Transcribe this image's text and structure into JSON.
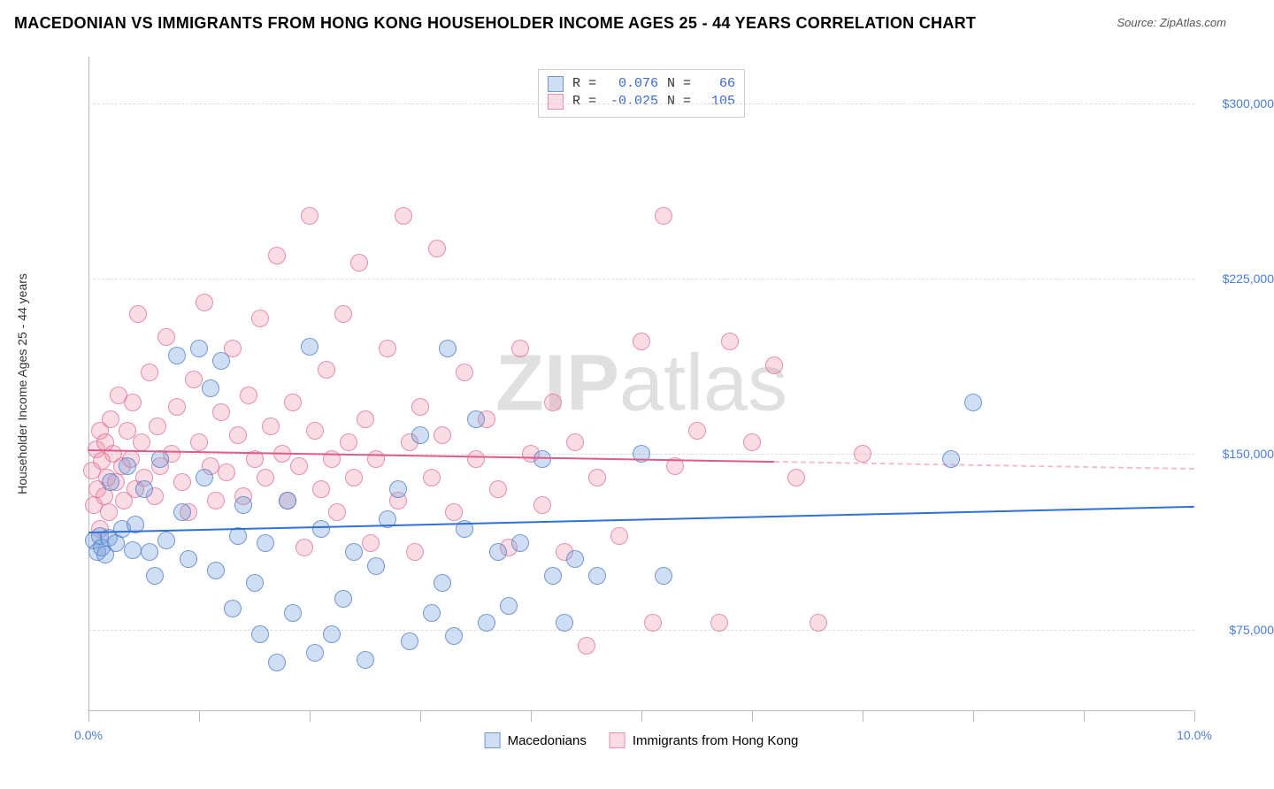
{
  "title": "MACEDONIAN VS IMMIGRANTS FROM HONG KONG HOUSEHOLDER INCOME AGES 25 - 44 YEARS CORRELATION CHART",
  "source_prefix": "Source: ",
  "source_name": "ZipAtlas.com",
  "ylabel": "Householder Income Ages 25 - 44 years",
  "watermark_a": "ZIP",
  "watermark_b": "atlas",
  "chart": {
    "type": "scatter",
    "xlim": [
      0,
      10
    ],
    "ylim": [
      40000,
      320000
    ],
    "x_tick_positions": [
      0,
      1,
      2,
      3,
      4,
      5,
      6,
      7,
      8,
      9,
      10
    ],
    "x_visible_labels": {
      "0": "0.0%",
      "10": "10.0%"
    },
    "y_ticks": [
      75000,
      150000,
      225000,
      300000
    ],
    "y_tick_labels": [
      "$75,000",
      "$150,000",
      "$225,000",
      "$300,000"
    ],
    "grid_color": "#dddddd",
    "axis_color": "#bbbbbb",
    "background": "#ffffff",
    "tick_label_color": "#4a7dd6",
    "point_radius": 10,
    "series": {
      "a": {
        "name": "Macedonians",
        "fill": "rgba(120,160,220,0.35)",
        "stroke": "rgba(70,120,200,0.7)",
        "R": "0.076",
        "N": "66",
        "trend": {
          "x0": 0,
          "y0": 117000,
          "x1": 10,
          "y1": 128000,
          "color": "#2f6fd8",
          "solid_end_x": 10
        }
      },
      "b": {
        "name": "Immigrants from Hong Kong",
        "fill": "rgba(235,140,165,0.3)",
        "stroke": "rgba(220,100,140,0.65)",
        "R": "-0.025",
        "N": "105",
        "trend": {
          "x0": 0,
          "y0": 152000,
          "x1": 10,
          "y1": 144000,
          "color": "#e05a8a",
          "solid_end_x": 6.2
        }
      }
    }
  },
  "points_a": [
    [
      0.05,
      113000
    ],
    [
      0.08,
      108000
    ],
    [
      0.1,
      115000
    ],
    [
      0.12,
      110000
    ],
    [
      0.15,
      107000
    ],
    [
      0.18,
      114000
    ],
    [
      0.2,
      138000
    ],
    [
      0.25,
      112000
    ],
    [
      0.3,
      118000
    ],
    [
      0.35,
      145000
    ],
    [
      0.4,
      109000
    ],
    [
      0.42,
      120000
    ],
    [
      0.5,
      135000
    ],
    [
      0.55,
      108000
    ],
    [
      0.6,
      98000
    ],
    [
      0.65,
      148000
    ],
    [
      0.7,
      113000
    ],
    [
      0.8,
      192000
    ],
    [
      0.85,
      125000
    ],
    [
      0.9,
      105000
    ],
    [
      1.0,
      195000
    ],
    [
      1.05,
      140000
    ],
    [
      1.1,
      178000
    ],
    [
      1.15,
      100000
    ],
    [
      1.2,
      190000
    ],
    [
      1.3,
      84000
    ],
    [
      1.35,
      115000
    ],
    [
      1.4,
      128000
    ],
    [
      1.5,
      95000
    ],
    [
      1.55,
      73000
    ],
    [
      1.6,
      112000
    ],
    [
      1.7,
      61000
    ],
    [
      1.8,
      130000
    ],
    [
      1.85,
      82000
    ],
    [
      2.0,
      196000
    ],
    [
      2.05,
      65000
    ],
    [
      2.1,
      118000
    ],
    [
      2.2,
      73000
    ],
    [
      2.3,
      88000
    ],
    [
      2.4,
      108000
    ],
    [
      2.5,
      62000
    ],
    [
      2.6,
      102000
    ],
    [
      2.7,
      122000
    ],
    [
      2.8,
      135000
    ],
    [
      2.9,
      70000
    ],
    [
      3.0,
      158000
    ],
    [
      3.1,
      82000
    ],
    [
      3.2,
      95000
    ],
    [
      3.25,
      195000
    ],
    [
      3.3,
      72000
    ],
    [
      3.4,
      118000
    ],
    [
      3.5,
      165000
    ],
    [
      3.6,
      78000
    ],
    [
      3.7,
      108000
    ],
    [
      3.8,
      85000
    ],
    [
      3.9,
      112000
    ],
    [
      4.1,
      148000
    ],
    [
      4.2,
      98000
    ],
    [
      4.3,
      78000
    ],
    [
      4.4,
      105000
    ],
    [
      4.6,
      98000
    ],
    [
      5.0,
      150000
    ],
    [
      5.2,
      98000
    ],
    [
      7.8,
      148000
    ],
    [
      8.0,
      172000
    ]
  ],
  "points_b": [
    [
      0.03,
      143000
    ],
    [
      0.05,
      128000
    ],
    [
      0.07,
      152000
    ],
    [
      0.08,
      135000
    ],
    [
      0.1,
      160000
    ],
    [
      0.1,
      118000
    ],
    [
      0.12,
      147000
    ],
    [
      0.14,
      132000
    ],
    [
      0.15,
      155000
    ],
    [
      0.17,
      140000
    ],
    [
      0.18,
      125000
    ],
    [
      0.2,
      165000
    ],
    [
      0.22,
      150000
    ],
    [
      0.25,
      138000
    ],
    [
      0.27,
      175000
    ],
    [
      0.3,
      145000
    ],
    [
      0.32,
      130000
    ],
    [
      0.35,
      160000
    ],
    [
      0.38,
      148000
    ],
    [
      0.4,
      172000
    ],
    [
      0.42,
      135000
    ],
    [
      0.45,
      210000
    ],
    [
      0.48,
      155000
    ],
    [
      0.5,
      140000
    ],
    [
      0.55,
      185000
    ],
    [
      0.6,
      132000
    ],
    [
      0.62,
      162000
    ],
    [
      0.65,
      145000
    ],
    [
      0.7,
      200000
    ],
    [
      0.75,
      150000
    ],
    [
      0.8,
      170000
    ],
    [
      0.85,
      138000
    ],
    [
      0.9,
      125000
    ],
    [
      0.95,
      182000
    ],
    [
      1.0,
      155000
    ],
    [
      1.05,
      215000
    ],
    [
      1.1,
      145000
    ],
    [
      1.15,
      130000
    ],
    [
      1.2,
      168000
    ],
    [
      1.25,
      142000
    ],
    [
      1.3,
      195000
    ],
    [
      1.35,
      158000
    ],
    [
      1.4,
      132000
    ],
    [
      1.45,
      175000
    ],
    [
      1.5,
      148000
    ],
    [
      1.55,
      208000
    ],
    [
      1.6,
      140000
    ],
    [
      1.65,
      162000
    ],
    [
      1.7,
      235000
    ],
    [
      1.75,
      150000
    ],
    [
      1.8,
      130000
    ],
    [
      1.85,
      172000
    ],
    [
      1.9,
      145000
    ],
    [
      1.95,
      110000
    ],
    [
      2.0,
      252000
    ],
    [
      2.05,
      160000
    ],
    [
      2.1,
      135000
    ],
    [
      2.15,
      186000
    ],
    [
      2.2,
      148000
    ],
    [
      2.25,
      125000
    ],
    [
      2.3,
      210000
    ],
    [
      2.35,
      155000
    ],
    [
      2.4,
      140000
    ],
    [
      2.45,
      232000
    ],
    [
      2.5,
      165000
    ],
    [
      2.55,
      112000
    ],
    [
      2.6,
      148000
    ],
    [
      2.7,
      195000
    ],
    [
      2.8,
      130000
    ],
    [
      2.85,
      252000
    ],
    [
      2.9,
      155000
    ],
    [
      2.95,
      108000
    ],
    [
      3.0,
      170000
    ],
    [
      3.1,
      140000
    ],
    [
      3.15,
      238000
    ],
    [
      3.2,
      158000
    ],
    [
      3.3,
      125000
    ],
    [
      3.4,
      185000
    ],
    [
      3.5,
      148000
    ],
    [
      3.6,
      165000
    ],
    [
      3.7,
      135000
    ],
    [
      3.8,
      110000
    ],
    [
      3.9,
      195000
    ],
    [
      4.0,
      150000
    ],
    [
      4.1,
      128000
    ],
    [
      4.2,
      172000
    ],
    [
      4.3,
      108000
    ],
    [
      4.4,
      155000
    ],
    [
      4.5,
      68000
    ],
    [
      4.6,
      140000
    ],
    [
      4.8,
      115000
    ],
    [
      5.0,
      198000
    ],
    [
      5.1,
      78000
    ],
    [
      5.2,
      252000
    ],
    [
      5.3,
      145000
    ],
    [
      5.5,
      160000
    ],
    [
      5.7,
      78000
    ],
    [
      5.8,
      198000
    ],
    [
      6.0,
      155000
    ],
    [
      6.2,
      188000
    ],
    [
      6.4,
      140000
    ],
    [
      6.6,
      78000
    ],
    [
      7.0,
      150000
    ]
  ],
  "legend_top_labels": {
    "R": "R =",
    "N": "N ="
  }
}
